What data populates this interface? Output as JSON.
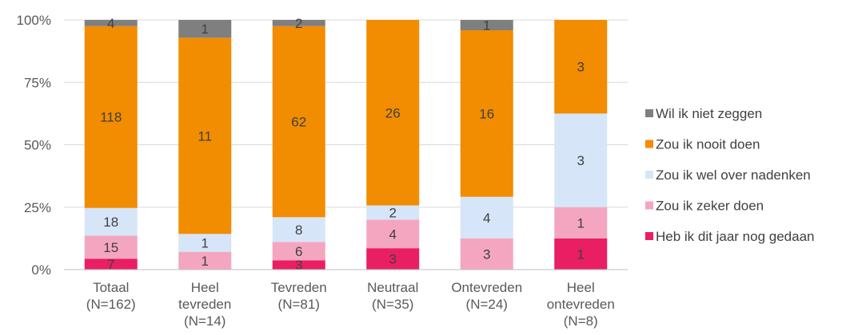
{
  "chart_data": {
    "type": "bar",
    "stacked": "percent",
    "categories": [
      [
        "Totaal",
        "(N=162)"
      ],
      [
        "Heel",
        "tevreden",
        "(N=14)"
      ],
      [
        "Tevreden",
        "(N=81)"
      ],
      [
        "Neutraal",
        "(N=35)"
      ],
      [
        "Ontevreden",
        "(N=24)"
      ],
      [
        "Heel",
        "ontevreden",
        "(N=8)"
      ]
    ],
    "yticks": [
      "0%",
      "25%",
      "50%",
      "75%",
      "100%"
    ],
    "ylim": [
      0,
      100
    ],
    "grid": true,
    "legend_position": "right",
    "series": [
      {
        "name": "Heb ik dit jaar nog gedaan",
        "color": "#E91E63",
        "values": [
          7,
          0,
          3,
          3,
          0,
          1
        ]
      },
      {
        "name": "Zou ik zeker doen",
        "color": "#F4A6C0",
        "values": [
          15,
          1,
          6,
          4,
          3,
          1
        ]
      },
      {
        "name": "Zou ik wel over nadenken",
        "color": "#D6E6F8",
        "values": [
          18,
          1,
          8,
          2,
          4,
          3
        ]
      },
      {
        "name": "Zou ik nooit doen",
        "color": "#F28C00",
        "values": [
          118,
          11,
          62,
          26,
          16,
          3
        ]
      },
      {
        "name": "Wil ik niet zeggen",
        "color": "#7F7F7F",
        "values": [
          4,
          1,
          2,
          0,
          1,
          0
        ]
      }
    ]
  }
}
